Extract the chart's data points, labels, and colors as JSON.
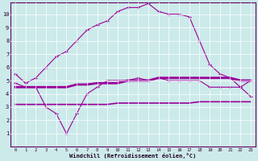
{
  "bg_color": "#cceaea",
  "line_color": "#990099",
  "xlabel": "Windchill (Refroidissement éolien,°C)",
  "x_min": 0,
  "x_max": 23,
  "y_min": 0,
  "y_max": 10,
  "yticks": [
    1,
    2,
    3,
    4,
    5,
    6,
    7,
    8,
    9,
    10
  ],
  "series1_x": [
    0,
    1,
    2,
    3,
    4,
    5,
    6,
    7,
    8,
    9,
    10,
    11,
    12,
    13,
    14,
    15,
    16,
    17,
    18,
    19,
    20,
    21,
    22,
    23
  ],
  "series1_y": [
    5.5,
    4.8,
    5.2,
    6.0,
    6.8,
    7.2,
    8.0,
    8.8,
    9.2,
    9.5,
    10.2,
    10.5,
    10.5,
    10.8,
    10.2,
    10.0,
    10.0,
    9.8,
    8.0,
    6.2,
    5.5,
    5.2,
    4.5,
    5.0
  ],
  "series2_x": [
    0,
    1,
    2,
    3,
    4,
    5,
    6,
    7,
    8,
    9,
    10,
    11,
    12,
    13,
    14,
    15,
    16,
    17,
    18,
    19,
    20,
    21,
    22,
    23
  ],
  "series2_y": [
    4.8,
    4.5,
    4.5,
    3.0,
    2.5,
    1.0,
    2.5,
    4.0,
    4.5,
    5.0,
    5.0,
    5.0,
    5.2,
    5.0,
    5.2,
    5.0,
    5.0,
    5.0,
    5.0,
    4.5,
    4.5,
    4.5,
    4.5,
    3.8
  ],
  "series3_x": [
    0,
    1,
    2,
    3,
    4,
    5,
    6,
    7,
    8,
    9,
    10,
    11,
    12,
    13,
    14,
    15,
    16,
    17,
    18,
    19,
    20,
    21,
    22,
    23
  ],
  "series3_y": [
    4.5,
    4.5,
    4.5,
    4.5,
    4.5,
    4.5,
    4.7,
    4.7,
    4.8,
    4.8,
    4.8,
    5.0,
    5.0,
    5.0,
    5.2,
    5.2,
    5.2,
    5.2,
    5.2,
    5.2,
    5.2,
    5.2,
    5.0,
    5.0
  ],
  "series4_x": [
    0,
    1,
    2,
    3,
    4,
    5,
    6,
    7,
    8,
    9,
    10,
    11,
    12,
    13,
    14,
    15,
    16,
    17,
    18,
    19,
    20,
    21,
    22,
    23
  ],
  "series4_y": [
    3.2,
    3.2,
    3.2,
    3.2,
    3.2,
    3.2,
    3.2,
    3.2,
    3.2,
    3.2,
    3.3,
    3.3,
    3.3,
    3.3,
    3.3,
    3.3,
    3.3,
    3.3,
    3.4,
    3.4,
    3.4,
    3.4,
    3.4,
    3.4
  ]
}
